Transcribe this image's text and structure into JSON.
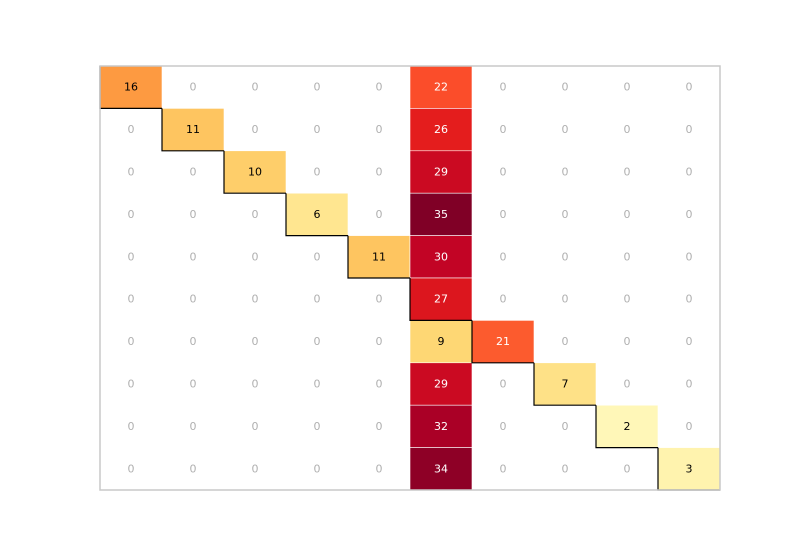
{
  "chart_data": {
    "type": "heatmap",
    "title": "",
    "xlabel": "",
    "ylabel": "",
    "grid": false,
    "rows": 10,
    "cols": 10,
    "diagonal_outlined": true,
    "color_scale": "YlOrRd",
    "value_range": [
      0,
      35
    ],
    "values": [
      [
        16,
        0,
        0,
        0,
        0,
        22,
        0,
        0,
        0,
        0
      ],
      [
        0,
        11,
        0,
        0,
        0,
        26,
        0,
        0,
        0,
        0
      ],
      [
        0,
        0,
        10,
        0,
        0,
        29,
        0,
        0,
        0,
        0
      ],
      [
        0,
        0,
        0,
        6,
        0,
        35,
        0,
        0,
        0,
        0
      ],
      [
        0,
        0,
        0,
        0,
        11,
        30,
        0,
        0,
        0,
        0
      ],
      [
        0,
        0,
        0,
        0,
        0,
        27,
        0,
        0,
        0,
        0
      ],
      [
        0,
        0,
        0,
        0,
        0,
        9,
        21,
        0,
        0,
        0
      ],
      [
        0,
        0,
        0,
        0,
        0,
        29,
        0,
        7,
        0,
        0
      ],
      [
        0,
        0,
        0,
        0,
        0,
        32,
        0,
        0,
        2,
        0
      ],
      [
        0,
        0,
        0,
        0,
        0,
        34,
        0,
        0,
        0,
        3
      ]
    ],
    "colors": {
      "zero_cell": "#ffffff",
      "zero_text": "#b0b0b0",
      "dark_text": "#000000",
      "light_text": "#ffffff",
      "frame": "#c8c8c8",
      "diagonal_outline": "#000000",
      "grid_line": "#ffffff"
    }
  }
}
